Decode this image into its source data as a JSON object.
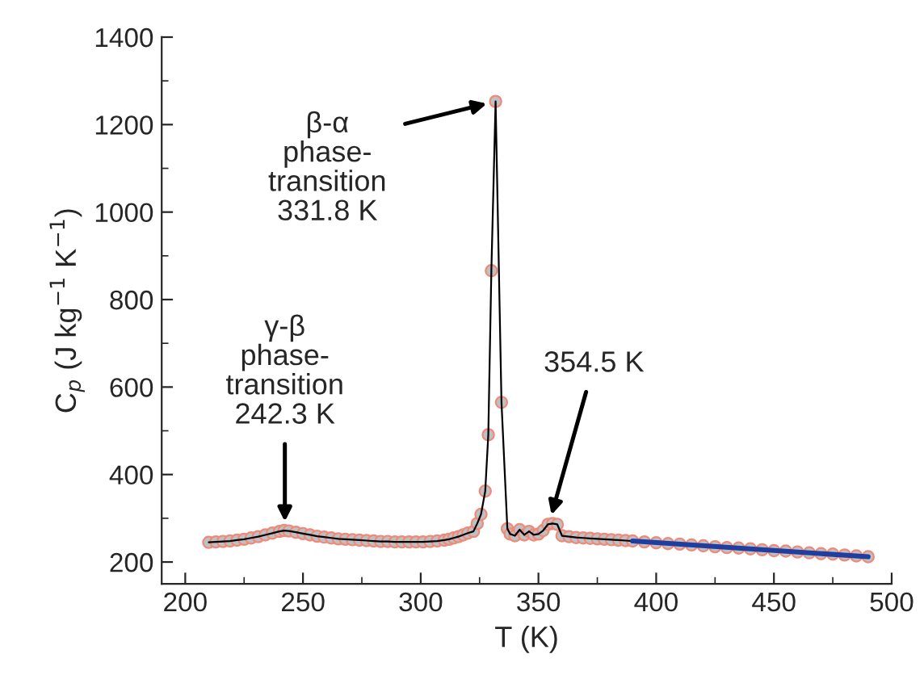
{
  "chart_data": {
    "type": "line",
    "xlabel": "T (K)",
    "ylabel": "C$_{p}$ (J kg$^{−1}$ K$^{−1}$)",
    "xlim": [
      190,
      500
    ],
    "ylim": [
      150,
      1400
    ],
    "xticks": [
      200,
      250,
      300,
      350,
      400,
      450,
      500
    ],
    "yticks": [
      200,
      400,
      600,
      800,
      1000,
      1200,
      1400
    ],
    "grid": false,
    "legend": false,
    "marker": "circle",
    "line_style": "solid",
    "series": [
      {
        "color": "#000000",
        "x": [
          210,
          213,
          216,
          219,
          222,
          225,
          228,
          231,
          234,
          237,
          240,
          242,
          244,
          247,
          250,
          253,
          256,
          259,
          262,
          265,
          268,
          271,
          274,
          277,
          280,
          283,
          286,
          289,
          292,
          295,
          298,
          301,
          304,
          307,
          310,
          312,
          314,
          316,
          318,
          320,
          322.4,
          324.0,
          325.6,
          327.4,
          328.7,
          330.0,
          331.8,
          334.3,
          336.8,
          338,
          340,
          342,
          344,
          346,
          348,
          350,
          352,
          354,
          356,
          358,
          360,
          363,
          366,
          369,
          372,
          375,
          378,
          381,
          384,
          387,
          390,
          395,
          400,
          405,
          410,
          415,
          420,
          425,
          430,
          435,
          440,
          445,
          450,
          455,
          460,
          465,
          470,
          475,
          480,
          485,
          490
        ],
        "values": [
          245,
          246,
          247,
          248,
          250,
          252,
          255,
          258,
          262,
          266,
          270,
          272,
          271,
          268,
          265,
          262,
          259,
          257,
          255,
          253,
          252,
          251,
          250,
          249,
          248,
          247,
          247,
          246,
          246,
          246,
          246,
          246,
          247,
          248,
          250,
          252,
          255,
          258,
          262,
          266,
          270,
          288,
          309,
          362,
          491,
          866,
          1253,
          565,
          276,
          264,
          260,
          274,
          262,
          270,
          262,
          264,
          272,
          286,
          288,
          286,
          260,
          258,
          256,
          255,
          254,
          253,
          252,
          251,
          250,
          249,
          248,
          246,
          244,
          242,
          241,
          239,
          237,
          235,
          233,
          232,
          230,
          228,
          226,
          225,
          223,
          221,
          219,
          218,
          216,
          214,
          212
        ]
      },
      {
        "color": "#1f3fa0",
        "marker": "none",
        "x": [
          390,
          490
        ],
        "values": [
          248,
          212
        ]
      }
    ],
    "annotations": [
      {
        "text": "β-α\nphase-\ntransition\n331.8 K",
        "x": 331.8,
        "y": 1253
      },
      {
        "text": "γ-β\nphase-\ntransition\n242.3 K",
        "x": 242.3,
        "y": 272
      },
      {
        "text": "354.5 K",
        "x": 354.5,
        "y": 288
      }
    ]
  }
}
